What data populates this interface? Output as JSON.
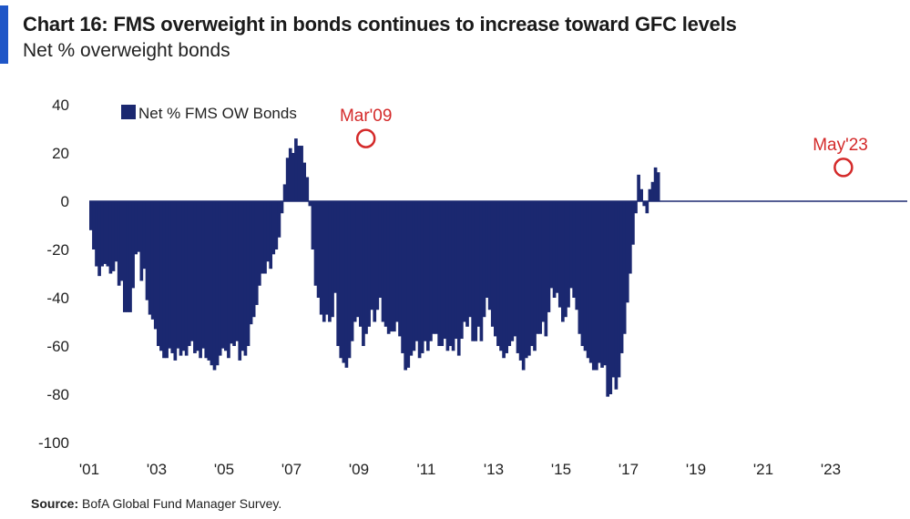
{
  "header": {
    "title": "Chart 16: FMS overweight in bonds continues to increase toward GFC levels",
    "subtitle": "Net % overweight bonds"
  },
  "source": {
    "label": "Source:",
    "text": "BofA Global Fund Manager Survey."
  },
  "colors": {
    "bars": "#1b2870",
    "accent": "#1f56c7",
    "annotation": "#d42a2a",
    "zero_line": "#1b2870"
  },
  "chart_data": {
    "type": "bar",
    "series": [
      {
        "name": "Net % FMS OW Bonds",
        "start": "2001-01",
        "frequency": "monthly",
        "values": [
          -12,
          -20,
          -27,
          -31,
          -27,
          -26,
          -27,
          -30,
          -29,
          -25,
          -35,
          -33,
          -46,
          -46,
          -46,
          -36,
          -22,
          -21,
          -33,
          -28,
          -41,
          -47,
          -49,
          -53,
          -60,
          -62,
          -65,
          -65,
          -61,
          -63,
          -66,
          -61,
          -64,
          -62,
          -64,
          -60,
          -58,
          -63,
          -62,
          -65,
          -61,
          -65,
          -66,
          -68,
          -70,
          -68,
          -64,
          -61,
          -62,
          -65,
          -59,
          -60,
          -58,
          -66,
          -62,
          -64,
          -60,
          -51,
          -48,
          -43,
          -35,
          -30,
          -30,
          -25,
          -28,
          -22,
          -20,
          -15,
          -5,
          7,
          18,
          22,
          20,
          26,
          23,
          23,
          16,
          10,
          -2,
          -20,
          -35,
          -40,
          -47,
          -50,
          -47,
          -50,
          -48,
          -38,
          -60,
          -65,
          -67,
          -69,
          -65,
          -58,
          -50,
          -48,
          -52,
          -60,
          -55,
          -52,
          -45,
          -50,
          -45,
          -40,
          -50,
          -52,
          -55,
          -54,
          -54,
          -50,
          -56,
          -63,
          -70,
          -69,
          -64,
          -62,
          -58,
          -65,
          -63,
          -58,
          -62,
          -58,
          -55,
          -55,
          -60,
          -60,
          -57,
          -62,
          -60,
          -62,
          -57,
          -64,
          -57,
          -50,
          -52,
          -48,
          -58,
          -58,
          -52,
          -58,
          -48,
          -40,
          -45,
          -52,
          -56,
          -60,
          -62,
          -65,
          -63,
          -60,
          -58,
          -56,
          -63,
          -66,
          -70,
          -65,
          -64,
          -60,
          -62,
          -55,
          -55,
          -50,
          -56,
          -46,
          -36,
          -40,
          -38,
          -44,
          -50,
          -48,
          -44,
          -36,
          -40,
          -45,
          -55,
          -60,
          -62,
          -65,
          -67,
          -70,
          -70,
          -67,
          -69,
          -68,
          -81,
          -80,
          -73,
          -78,
          -73,
          -63,
          -55,
          -42,
          -30,
          -18,
          -5,
          11,
          5,
          -2,
          -5,
          5,
          8,
          14,
          12
        ]
      }
    ],
    "xticks": [
      "'01",
      "'03",
      "'05",
      "'07",
      "'09",
      "'11",
      "'13",
      "'15",
      "'17",
      "'19",
      "'21",
      "'23"
    ],
    "xtick_years": [
      2001,
      2003,
      2005,
      2007,
      2009,
      2011,
      2013,
      2015,
      2017,
      2019,
      2021,
      2023
    ],
    "ylim": [
      -100,
      40
    ],
    "yticks": [
      40,
      20,
      0,
      -20,
      -40,
      -60,
      -80,
      -100
    ],
    "grid": false,
    "legend_position": "top-left",
    "annotations": [
      {
        "label": "Mar'09",
        "x": "2009-03",
        "y": 26
      },
      {
        "label": "May'23",
        "x": "2023-05",
        "y": 14
      }
    ]
  }
}
